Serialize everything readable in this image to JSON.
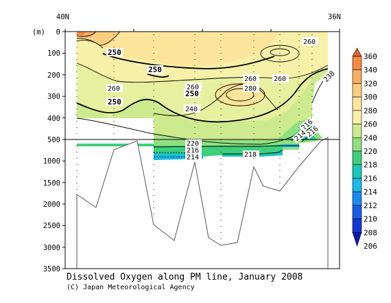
{
  "chart_data": {
    "type": "heatmap",
    "title": "Dissolved Oxygen along PM line, January 2008",
    "credit": "(C) Japan Meteorological Agency",
    "ylabel": "(m)",
    "x_end_labels": [
      "40N",
      "36N"
    ],
    "upper_ticks": [
      "0",
      "100",
      "200",
      "300",
      "400",
      "500"
    ],
    "lower_ticks": [
      "1000",
      "1500",
      "2000",
      "2500",
      "3000",
      "3500"
    ],
    "upper_ylim": [
      0,
      500
    ],
    "lower_ylim": [
      500,
      3500
    ],
    "colorbar": {
      "levels": [
        "360",
        "340",
        "320",
        "300",
        "280",
        "260",
        "240",
        "220",
        "218",
        "216",
        "214",
        "212",
        "210",
        "208",
        "206"
      ],
      "colors": [
        "#e8632a",
        "#f28a43",
        "#f7ae62",
        "#fbcd80",
        "#fce59b",
        "#f6f0a8",
        "#cdeb8e",
        "#8fe080",
        "#3fcf7a",
        "#17c9b8",
        "#19b9ea",
        "#1a8cf0",
        "#185de8",
        "#1435d6",
        "#0b16b8"
      ]
    },
    "contour_labels": [
      {
        "text": "250",
        "bold": true
      },
      {
        "text": "250",
        "bold": true
      },
      {
        "text": "250",
        "bold": true
      },
      {
        "text": "250",
        "bold": true
      },
      {
        "text": "260",
        "bold": false
      },
      {
        "text": "260",
        "bold": false
      },
      {
        "text": "260",
        "bold": false
      },
      {
        "text": "260",
        "bold": false
      },
      {
        "text": "260",
        "bold": false
      },
      {
        "text": "280",
        "bold": false
      },
      {
        "text": "240",
        "bold": false
      },
      {
        "text": "238",
        "bold": false
      },
      {
        "text": "216",
        "bold": false
      },
      {
        "text": "216",
        "bold": false
      },
      {
        "text": "214",
        "bold": false
      },
      {
        "text": "220",
        "bold": false
      },
      {
        "text": "216",
        "bold": false
      },
      {
        "text": "214",
        "bold": false
      },
      {
        "text": "218",
        "bold": false
      }
    ]
  }
}
